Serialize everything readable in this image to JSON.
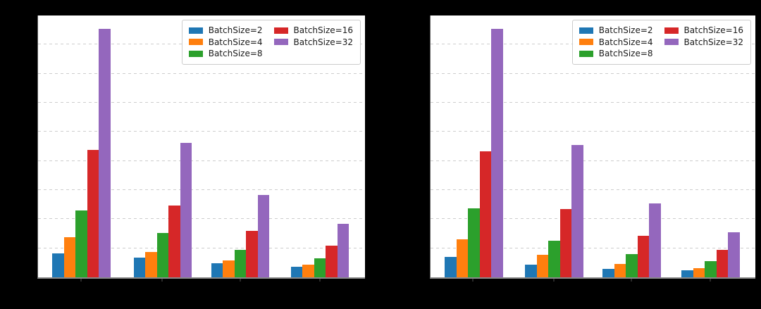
{
  "figure": {
    "background_color": "#000000",
    "plot_background_color": "#ffffff",
    "grid_color": "#cdcdcd",
    "spine_color": "#8a8a8a",
    "axis_text_visible": false
  },
  "chart_data": [
    {
      "type": "bar",
      "panel": "left",
      "categories": [
        "",
        "",
        "",
        ""
      ],
      "series": [
        {
          "name": "BatchSize=2",
          "color": "#1f77b4",
          "values": [
            0.82,
            0.68,
            0.48,
            0.36
          ]
        },
        {
          "name": "BatchSize=4",
          "color": "#ff7f0e",
          "values": [
            1.37,
            0.87,
            0.58,
            0.43
          ]
        },
        {
          "name": "BatchSize=8",
          "color": "#2ca02c",
          "values": [
            2.31,
            1.53,
            0.94,
            0.65
          ]
        },
        {
          "name": "BatchSize=16",
          "color": "#d62728",
          "values": [
            4.37,
            2.48,
            1.6,
            1.1
          ]
        },
        {
          "name": "BatchSize=32",
          "color": "#9467bd",
          "values": [
            8.53,
            4.61,
            2.82,
            1.83
          ]
        }
      ],
      "ylim": [
        0,
        9
      ],
      "gridlines_at": [
        1,
        2,
        3,
        4,
        5,
        6,
        7,
        8
      ],
      "grid": "horizontal-dashed",
      "xticklabels_visible": false,
      "yticklabels_visible": false,
      "legend": {
        "position": "upper-right",
        "columns": 2,
        "entries": [
          "BatchSize=2",
          "BatchSize=4",
          "BatchSize=8",
          "BatchSize=16",
          "BatchSize=32"
        ]
      }
    },
    {
      "type": "bar",
      "panel": "right",
      "categories": [
        "",
        "",
        "",
        ""
      ],
      "series": [
        {
          "name": "BatchSize=2",
          "color": "#1f77b4",
          "values": [
            0.7,
            0.43,
            0.28,
            0.24
          ]
        },
        {
          "name": "BatchSize=4",
          "color": "#ff7f0e",
          "values": [
            1.3,
            0.77,
            0.47,
            0.32
          ]
        },
        {
          "name": "BatchSize=8",
          "color": "#2ca02c",
          "values": [
            2.36,
            1.25,
            0.8,
            0.55
          ]
        },
        {
          "name": "BatchSize=16",
          "color": "#d62728",
          "values": [
            4.33,
            2.34,
            1.43,
            0.94
          ]
        },
        {
          "name": "BatchSize=32",
          "color": "#9467bd",
          "values": [
            8.53,
            4.56,
            2.53,
            1.54
          ]
        }
      ],
      "ylim": [
        0,
        9
      ],
      "gridlines_at": [
        1,
        2,
        3,
        4,
        5,
        6,
        7,
        8
      ],
      "grid": "horizontal-dashed",
      "xticklabels_visible": false,
      "yticklabels_visible": false,
      "legend": {
        "position": "upper-right",
        "columns": 2,
        "entries": [
          "BatchSize=2",
          "BatchSize=4",
          "BatchSize=8",
          "BatchSize=16",
          "BatchSize=32"
        ]
      }
    }
  ]
}
